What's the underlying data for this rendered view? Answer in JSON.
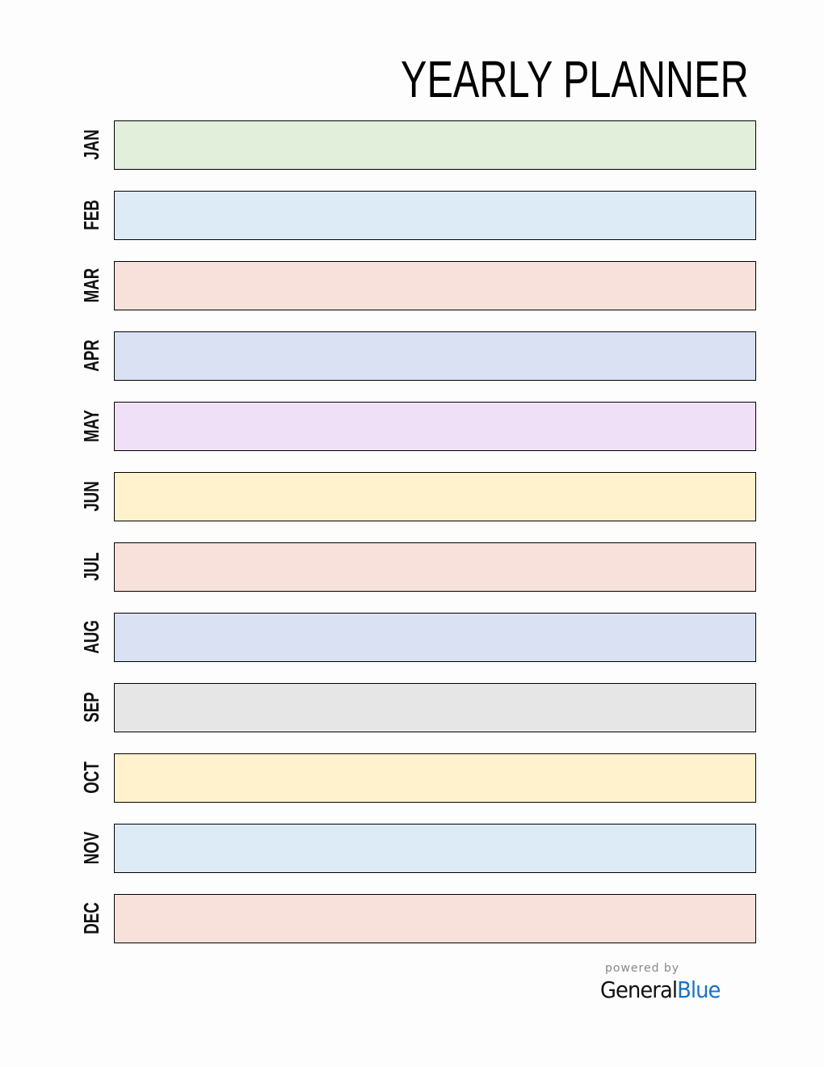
{
  "title": "YEARLY PLANNER",
  "months": [
    {
      "label": "JAN",
      "color": "#e2efda"
    },
    {
      "label": "FEB",
      "color": "#ddebf7"
    },
    {
      "label": "MAR",
      "color": "#f8e1da"
    },
    {
      "label": "APR",
      "color": "#d9e1f2"
    },
    {
      "label": "MAY",
      "color": "#efe0f7"
    },
    {
      "label": "JUN",
      "color": "#fff2cc"
    },
    {
      "label": "JUL",
      "color": "#f8e1da"
    },
    {
      "label": "AUG",
      "color": "#d9e1f2"
    },
    {
      "label": "SEP",
      "color": "#e7e6e6"
    },
    {
      "label": "OCT",
      "color": "#fff2cc"
    },
    {
      "label": "NOV",
      "color": "#ddebf7"
    },
    {
      "label": "DEC",
      "color": "#f8e1da"
    }
  ],
  "footer": {
    "powered_by": "powered by",
    "brand_general": "General",
    "brand_blue": "Blue"
  }
}
